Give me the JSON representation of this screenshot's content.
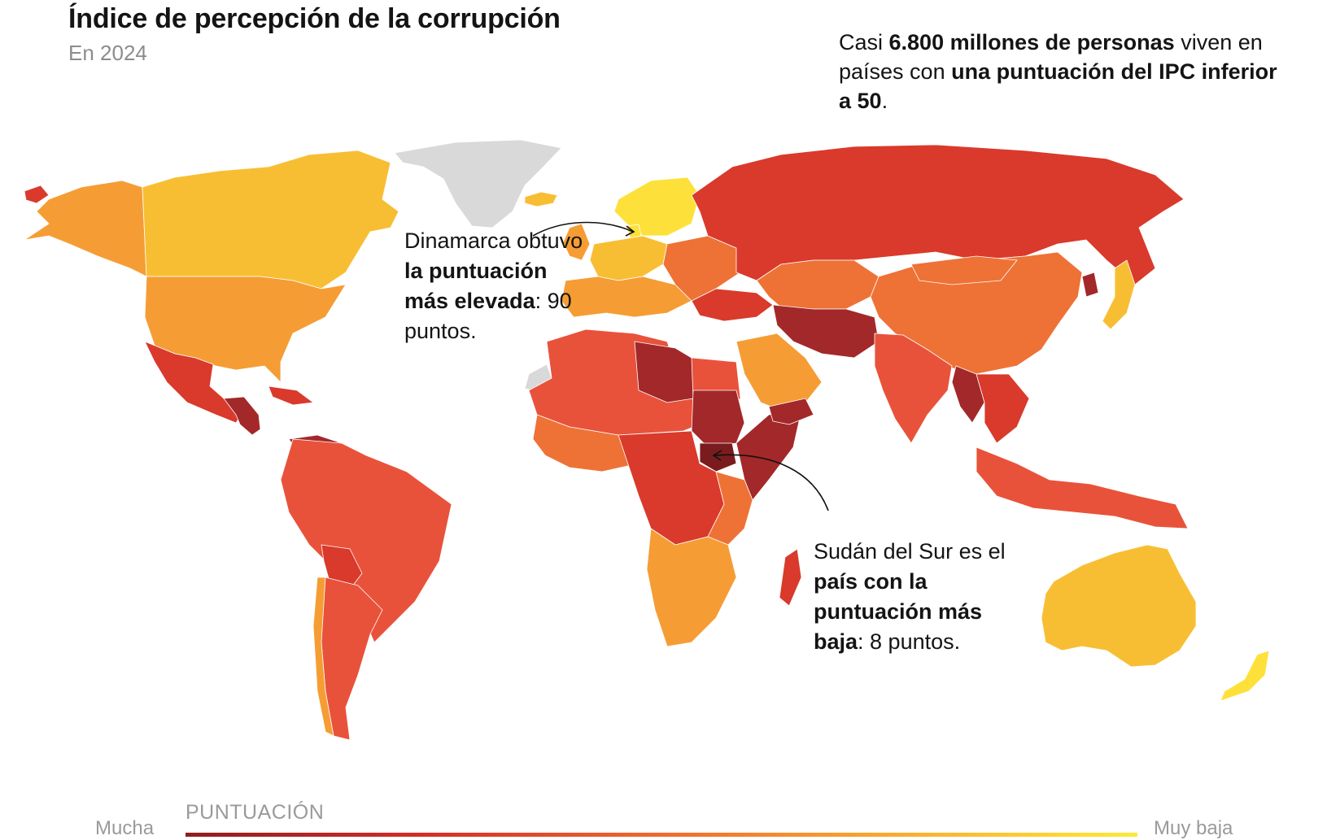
{
  "header": {
    "title": "Índice de percepción de la corrupción",
    "subtitle": "En 2024"
  },
  "callout": {
    "p1": "Casi ",
    "b1": "6.800 millones de personas",
    "p2": " viven en países con ",
    "b2": "una puntuación del IPC inferior a 50",
    "p3": "."
  },
  "annotations": {
    "denmark": {
      "p1": "Dinamarca obtuvo ",
      "b1": "la puntuación más elevada",
      "p2": ": 90 puntos."
    },
    "south_sudan": {
      "p1": "Sudán del Sur es el ",
      "b1": "país con la puntuación más baja",
      "p2": ": 8 puntos."
    }
  },
  "legend": {
    "title": "PUNTUACIÓN",
    "left_label": "Mucha",
    "right_label": "Muy baja",
    "colors": [
      "#8f1d1d",
      "#d32e2a",
      "#ef6a2e",
      "#f8ad30",
      "#fde93a"
    ]
  },
  "colors": {
    "very_low_score": "#a3282a",
    "low_score": "#d93a2b",
    "mid_low_score": "#e9523a",
    "mid_score": "#ee7236",
    "mid_high_score": "#f59d34",
    "high_score": "#f8be33",
    "very_high_score": "#fde13a",
    "no_data": "#d9d9d9"
  }
}
